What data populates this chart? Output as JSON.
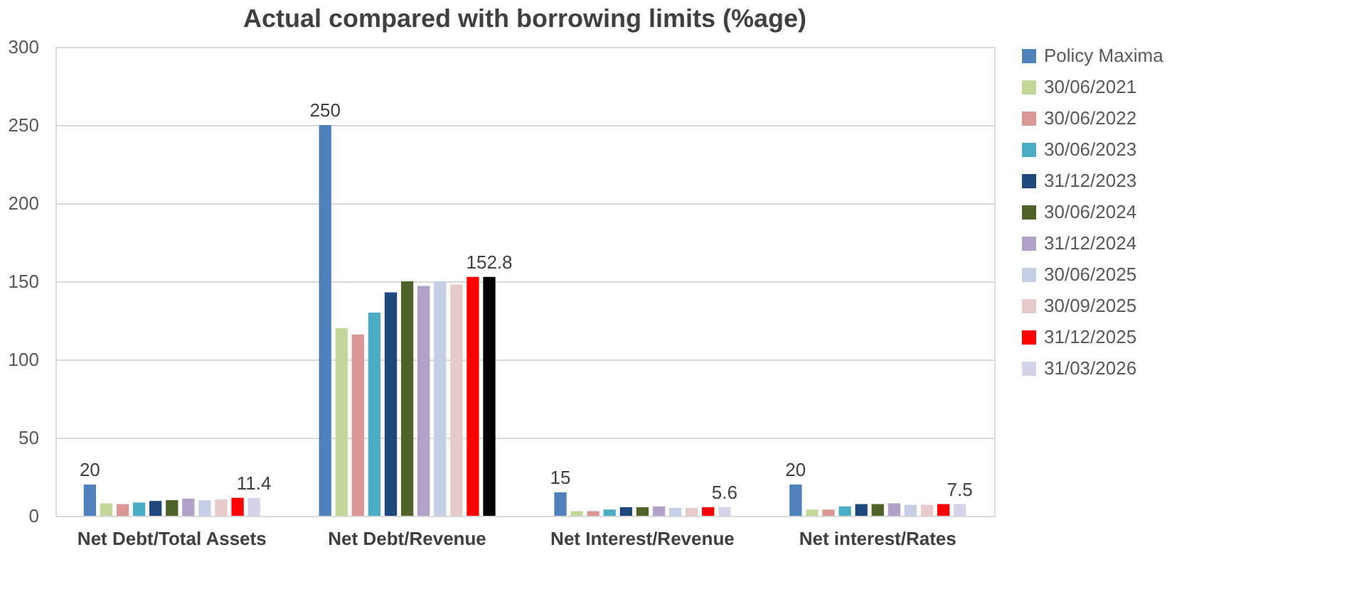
{
  "chart_data": {
    "type": "bar",
    "title": "Actual compared with borrowing limits (%age)",
    "categories": [
      "Net Debt/Total Assets",
      "Net Debt/Revenue",
      "Net Interest/Revenue",
      "Net interest/Rates"
    ],
    "series": [
      {
        "name": "Policy Maxima",
        "color": "#4f81bd",
        "values": [
          20,
          250,
          15,
          20
        ],
        "value_labels": [
          "20",
          "250",
          "15",
          "20"
        ]
      },
      {
        "name": "30/06/2021",
        "color": "#c4d79b",
        "values": [
          8,
          120,
          3,
          4
        ]
      },
      {
        "name": "30/06/2022",
        "color": "#da9694",
        "values": [
          7.5,
          116,
          3,
          4
        ]
      },
      {
        "name": "30/06/2023",
        "color": "#4bacc6",
        "values": [
          8.5,
          130,
          4,
          6
        ]
      },
      {
        "name": "31/12/2023",
        "color": "#1f497d",
        "values": [
          9.5,
          143,
          5.5,
          7.5
        ]
      },
      {
        "name": "30/06/2024",
        "color": "#4f6228",
        "values": [
          10,
          150,
          5.5,
          7.5
        ]
      },
      {
        "name": "31/12/2024",
        "color": "#b1a0c7",
        "values": [
          11,
          147,
          6,
          8
        ]
      },
      {
        "name": "30/06/2025",
        "color": "#c5d0e6",
        "values": [
          10,
          150,
          5,
          7
        ]
      },
      {
        "name": "30/09/2025",
        "color": "#e6c9c9",
        "values": [
          10.5,
          148,
          5,
          7
        ]
      },
      {
        "name": "31/12/2025",
        "color": "#ff0000",
        "values": [
          11.5,
          152.8,
          5.5,
          7.5
        ]
      },
      {
        "name": "31/03/2026",
        "color": "#d4d4e8",
        "colors": [
          "#d4d4e8",
          "#000000",
          "#d4d4e8",
          "#d4d4e8"
        ],
        "values": [
          11.4,
          152.8,
          5.6,
          7.5
        ],
        "value_labels": [
          "11.4",
          "152.8",
          "5.6",
          "7.5"
        ]
      }
    ],
    "ylim": [
      0,
      300
    ],
    "yticks": [
      0,
      50,
      100,
      150,
      200,
      250,
      300
    ],
    "grid": "y",
    "legend": "right"
  }
}
